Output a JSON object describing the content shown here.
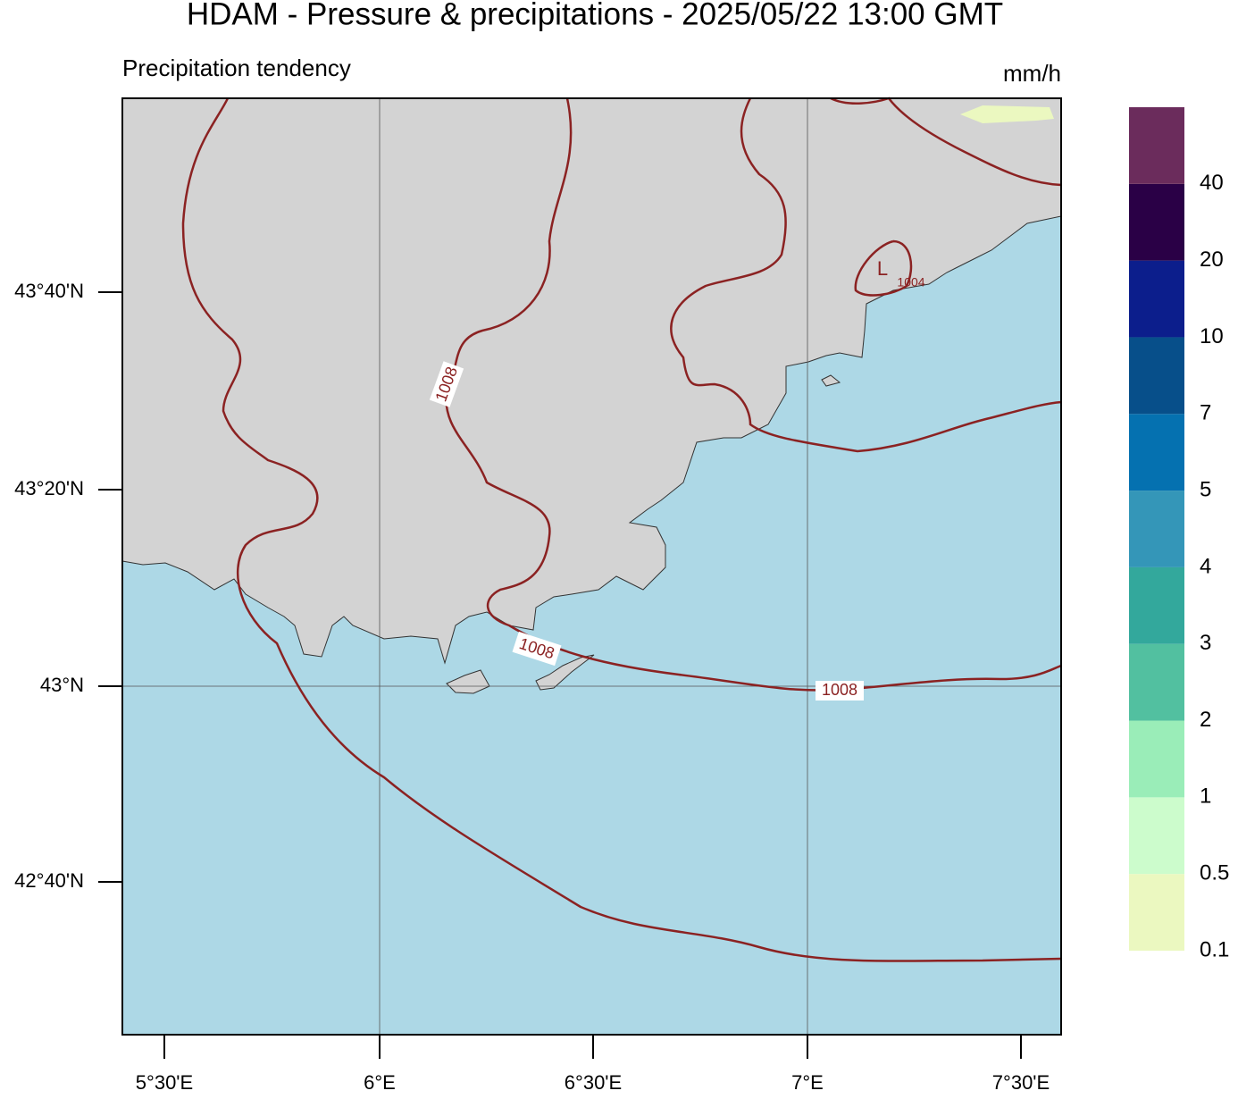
{
  "title": "HDAM - Pressure & precipitations  -  2025/05/22  13:00 GMT",
  "subtitle": "Precipitation tendency",
  "unit": "mm/h",
  "lat_labels": [
    "43°40'N",
    "43°20'N",
    "43°N",
    "42°40'N"
  ],
  "lon_labels": [
    "5°30'E",
    "6°E",
    "6°30'E",
    "7°E",
    "7°30'E"
  ],
  "isobar_labels": [
    "1008",
    "1008",
    "1008",
    "1004"
  ],
  "low_label": "L",
  "colorbar": {
    "labels": [
      "0.1",
      "0.5",
      "1",
      "2",
      "3",
      "4",
      "5",
      "7",
      "10",
      "20",
      "40"
    ],
    "colors": [
      "#ebf8c0",
      "#ccfccc",
      "#9aedb8",
      "#52c0a0",
      "#33a89c",
      "#3496b8",
      "#0571b0",
      "#074f8a",
      "#0c1e8c",
      "#2a0046",
      "#6b2c5c"
    ]
  }
}
